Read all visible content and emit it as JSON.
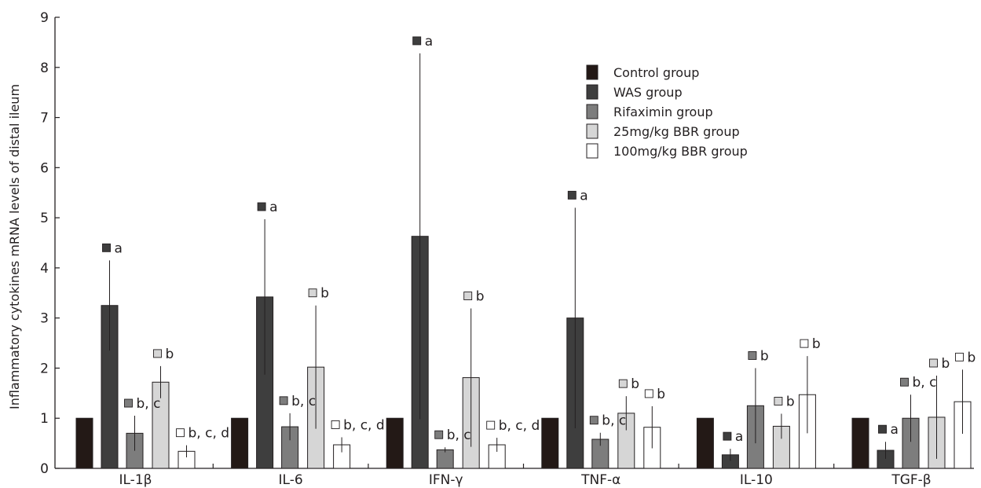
{
  "chart_data": {
    "type": "bar",
    "title": "",
    "xlabel": "",
    "ylabel": "Inflammatory cytokines mRNA levels of distal ileum",
    "ylim": [
      0,
      9
    ],
    "yticks": [
      0,
      1,
      2,
      3,
      4,
      5,
      6,
      7,
      8,
      9
    ],
    "grid": false,
    "legend_position": "top-right",
    "categories": [
      "IL-1β",
      "IL-6",
      "IFN-γ",
      "TNF-α",
      "IL-10",
      "TGF-β"
    ],
    "series": [
      {
        "name": "Control group",
        "color": "#231916",
        "values": [
          1.0,
          1.0,
          1.0,
          1.0,
          1.0,
          1.0
        ],
        "errors": [
          0,
          0,
          0,
          0,
          0,
          0
        ],
        "annotations": [
          "",
          "",
          "",
          "",
          "",
          ""
        ]
      },
      {
        "name": "WAS group",
        "color": "#3e3e3e",
        "values": [
          3.25,
          3.42,
          4.63,
          3.0,
          0.27,
          0.36
        ],
        "errors": [
          0.9,
          1.55,
          3.65,
          2.2,
          0.12,
          0.17
        ],
        "annotations": [
          "a",
          "a",
          "a",
          "a",
          "a",
          "a"
        ]
      },
      {
        "name": "Rifaximin group",
        "color": "#7d7d7d",
        "values": [
          0.7,
          0.83,
          0.37,
          0.58,
          1.25,
          1.0
        ],
        "errors": [
          0.35,
          0.27,
          0.05,
          0.13,
          0.75,
          0.47
        ],
        "annotations": [
          "b, c",
          "b, c",
          "b, c",
          "b, c",
          "b",
          "b, c"
        ]
      },
      {
        "name": "25mg/kg BBR group",
        "color": "#d6d6d6",
        "values": [
          1.72,
          2.02,
          1.81,
          1.1,
          0.84,
          1.02
        ],
        "errors": [
          0.32,
          1.23,
          1.38,
          0.34,
          0.25,
          0.83
        ],
        "annotations": [
          "b",
          "b",
          "b",
          "b",
          "b",
          "b"
        ]
      },
      {
        "name": "100mg/kg BBR group",
        "color": "#ffffff",
        "values": [
          0.34,
          0.47,
          0.47,
          0.82,
          1.47,
          1.33
        ],
        "errors": [
          0.12,
          0.15,
          0.14,
          0.42,
          0.77,
          0.64
        ],
        "annotations": [
          "b, c, d",
          "b, c, d",
          "b, c, d",
          "b",
          "b",
          "b"
        ]
      }
    ]
  }
}
